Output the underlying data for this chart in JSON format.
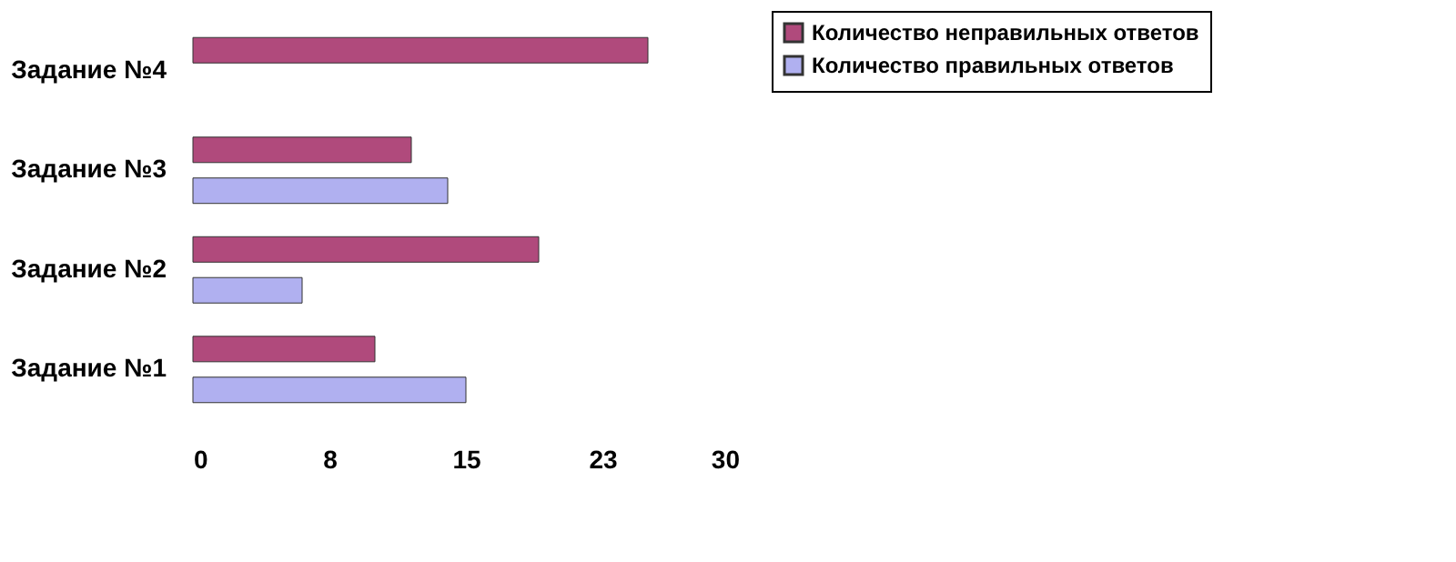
{
  "chart_data": {
    "type": "bar",
    "orientation": "horizontal",
    "categories": [
      "Задание №4",
      "Задание №3",
      "Задание №2",
      "Задание №1"
    ],
    "series": [
      {
        "name": "Количество неправильных ответов",
        "color": "#b04a7c",
        "values": [
          25,
          12,
          19,
          10
        ]
      },
      {
        "name": "Количество правильных ответов",
        "color": "#b0b0f0",
        "values": [
          null,
          14,
          6,
          15
        ]
      }
    ],
    "xlim": [
      0,
      30
    ],
    "xticks": [
      0,
      {
        "value": 7.5,
        "label": "8"
      },
      15,
      {
        "value": 22.5,
        "label": "23"
      },
      30
    ],
    "grid": false,
    "legend": "right"
  }
}
